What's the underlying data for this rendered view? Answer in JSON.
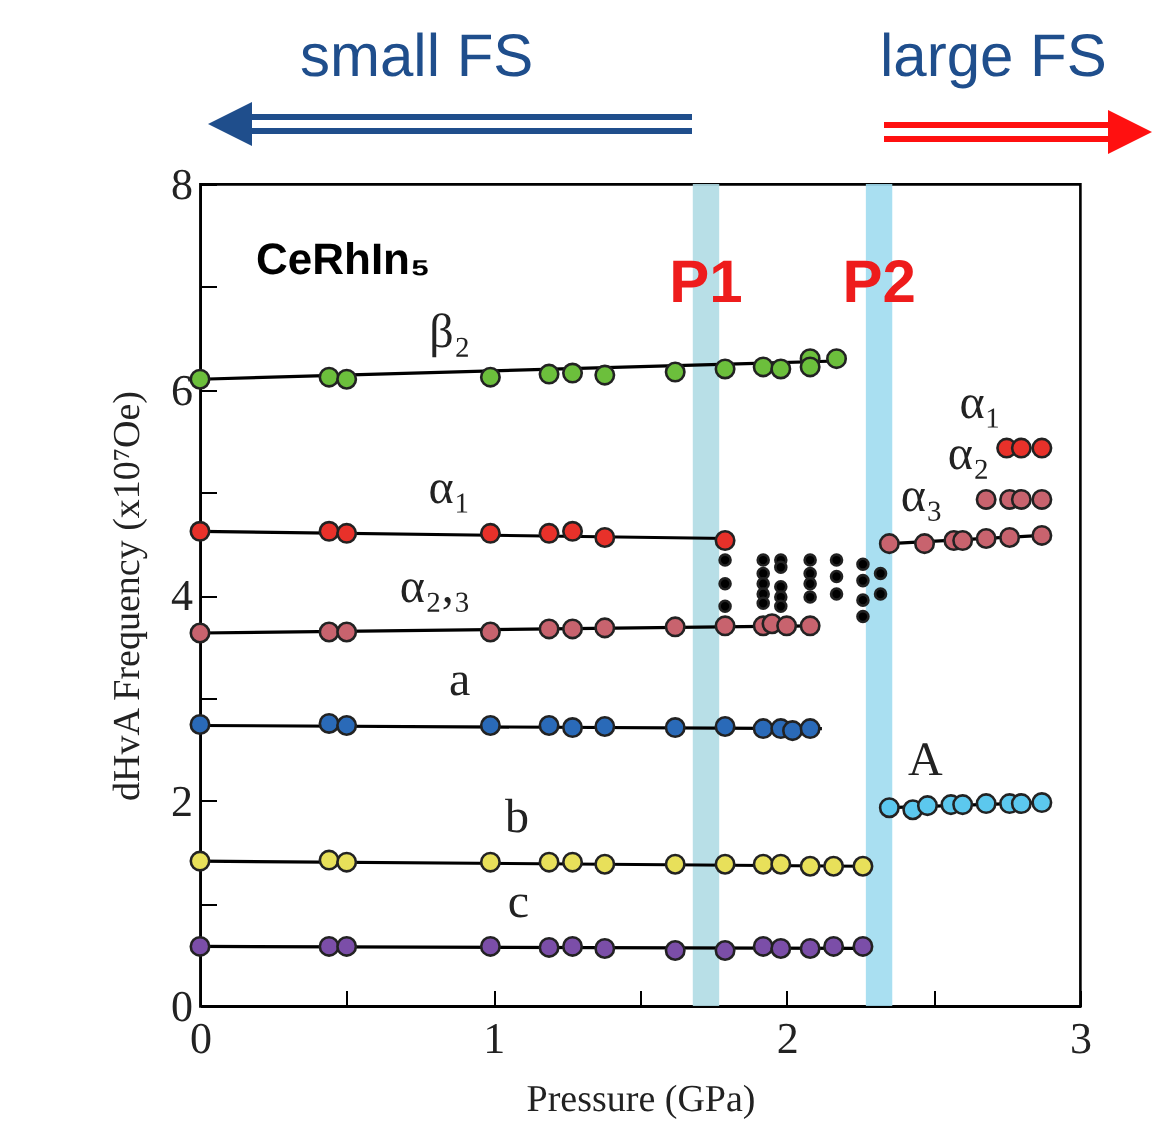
{
  "chart_data": {
    "type": "scatter",
    "title": "CeRhIn₅",
    "xlabel": "Pressure (GPa)",
    "ylabel": "dHvA Frequency (x10⁷Oe)",
    "xlim": [
      0,
      3
    ],
    "ylim": [
      0,
      8
    ],
    "xticks": [
      0,
      {
        "value": 0.5,
        "label": null
      },
      1,
      {
        "value": 1.5,
        "label": null
      },
      2,
      {
        "value": 2.5,
        "label": null
      },
      3
    ],
    "yticks": [
      0,
      {
        "value": 1,
        "label": null
      },
      2,
      {
        "value": 3,
        "label": null
      },
      4,
      {
        "value": 5,
        "label": null
      },
      6,
      {
        "value": 7,
        "label": null
      },
      8
    ],
    "grid": false,
    "marker": "circle",
    "series": [
      {
        "type": "line",
        "marker": "none",
        "color": "#000000",
        "x": [
          0,
          2.2
        ],
        "values": [
          6.1,
          6.28
        ]
      },
      {
        "type": "line",
        "marker": "none",
        "color": "#000000",
        "x": [
          0,
          1.8
        ],
        "values": [
          4.62,
          4.55
        ]
      },
      {
        "type": "line",
        "marker": "none",
        "color": "#000000",
        "x": [
          0,
          2.1
        ],
        "values": [
          3.63,
          3.7
        ]
      },
      {
        "type": "line",
        "marker": "none",
        "color": "#000000",
        "x": [
          0,
          2.12
        ],
        "values": [
          2.73,
          2.7
        ]
      },
      {
        "type": "line",
        "marker": "none",
        "color": "#000000",
        "x": [
          0,
          2.26
        ],
        "values": [
          1.41,
          1.36
        ]
      },
      {
        "type": "line",
        "marker": "none",
        "color": "#000000",
        "x": [
          0,
          2.26
        ],
        "values": [
          0.58,
          0.56
        ]
      },
      {
        "type": "line",
        "marker": "none",
        "color": "#000000",
        "x": [
          2.35,
          2.87
        ],
        "values": [
          4.5,
          4.58
        ]
      },
      {
        "type": "line",
        "marker": "none",
        "color": "#000000",
        "x": [
          2.35,
          2.87
        ],
        "values": [
          1.93,
          1.98
        ]
      },
      {
        "name": "β₂",
        "color": "#6cbf3c",
        "x": [
          0,
          0.44,
          0.5,
          0.99,
          1.19,
          1.27,
          1.38,
          1.62,
          1.79,
          1.92,
          1.98,
          2.08,
          2.08,
          2.17
        ],
        "values": [
          6.1,
          6.12,
          6.1,
          6.12,
          6.15,
          6.16,
          6.14,
          6.17,
          6.2,
          6.22,
          6.2,
          6.3,
          6.22,
          6.3
        ]
      },
      {
        "name": "α₁",
        "color": "#e8312a",
        "x": [
          0,
          0.44,
          0.5,
          0.99,
          1.19,
          1.27,
          1.38,
          1.79
        ],
        "values": [
          4.62,
          4.62,
          4.6,
          4.6,
          4.6,
          4.62,
          4.56,
          4.53
        ]
      },
      {
        "name": "α₂,₃",
        "color": "#c8636e",
        "x": [
          0,
          0.44,
          0.5,
          0.99,
          1.19,
          1.27,
          1.38,
          1.62,
          1.79,
          1.92,
          1.95,
          2.0,
          2.08
        ],
        "values": [
          3.63,
          3.64,
          3.64,
          3.64,
          3.67,
          3.67,
          3.68,
          3.69,
          3.7,
          3.7,
          3.72,
          3.7,
          3.7
        ]
      },
      {
        "name": "a",
        "color": "#2a6ab8",
        "x": [
          0,
          0.44,
          0.5,
          0.99,
          1.19,
          1.27,
          1.38,
          1.62,
          1.79,
          1.92,
          1.98,
          2.02,
          2.08
        ],
        "values": [
          2.74,
          2.75,
          2.73,
          2.73,
          2.73,
          2.71,
          2.72,
          2.71,
          2.72,
          2.7,
          2.7,
          2.68,
          2.7
        ]
      },
      {
        "name": "b",
        "color": "#e8e05a",
        "x": [
          0,
          0.44,
          0.5,
          0.99,
          1.19,
          1.27,
          1.38,
          1.62,
          1.79,
          1.92,
          1.98,
          2.08,
          2.16,
          2.26
        ],
        "values": [
          1.41,
          1.42,
          1.4,
          1.4,
          1.4,
          1.4,
          1.38,
          1.38,
          1.38,
          1.38,
          1.38,
          1.36,
          1.36,
          1.36
        ]
      },
      {
        "name": "c",
        "color": "#7b4ea8",
        "x": [
          0,
          0.44,
          0.5,
          0.99,
          1.19,
          1.27,
          1.38,
          1.62,
          1.79,
          1.92,
          1.98,
          2.08,
          2.16,
          2.26
        ],
        "values": [
          0.58,
          0.58,
          0.58,
          0.58,
          0.57,
          0.58,
          0.56,
          0.54,
          0.54,
          0.58,
          0.56,
          0.56,
          0.58,
          0.58
        ]
      },
      {
        "name": "α₃",
        "color": "#c8636e",
        "x": [
          2.35,
          2.47,
          2.57,
          2.6,
          2.68,
          2.76,
          2.87
        ],
        "values": [
          4.5,
          4.5,
          4.53,
          4.53,
          4.55,
          4.56,
          4.58
        ]
      },
      {
        "name": "α₂",
        "color": "#c8636e",
        "x": [
          2.68,
          2.76,
          2.8,
          2.87
        ],
        "values": [
          4.93,
          4.93,
          4.93,
          4.93
        ]
      },
      {
        "name": "α₁",
        "color": "#e8312a",
        "x": [
          2.75,
          2.8,
          2.87
        ],
        "values": [
          5.43,
          5.43,
          5.43
        ]
      },
      {
        "name": "A",
        "color": "#5cc8ee",
        "x": [
          2.35,
          2.43,
          2.48,
          2.56,
          2.6,
          2.68,
          2.76,
          2.8,
          2.87
        ],
        "values": [
          1.93,
          1.91,
          1.95,
          1.96,
          1.96,
          1.97,
          1.97,
          1.97,
          1.98
        ]
      },
      {
        "color": "#000000",
        "x": [
          1.79,
          1.79,
          1.79,
          1.92,
          1.92,
          1.92,
          1.92,
          1.92,
          1.98,
          1.98,
          1.98,
          1.98,
          1.98,
          2.08,
          2.08,
          2.08,
          2.08,
          2.17,
          2.17,
          2.17,
          2.26,
          2.26,
          2.26,
          2.26,
          2.32,
          2.32
        ],
        "values": [
          4.34,
          4.11,
          3.89,
          4.34,
          4.21,
          4.11,
          4.01,
          3.92,
          4.34,
          4.27,
          4.08,
          3.98,
          3.89,
          4.34,
          4.21,
          4.11,
          3.98,
          4.34,
          4.18,
          4.01,
          4.3,
          4.14,
          3.95,
          3.79,
          4.21,
          4.01
        ]
      }
    ],
    "bands": [
      {
        "axis": "x",
        "from": 1.68,
        "to": 1.77,
        "label": "P1",
        "color": "#b0dce4"
      },
      {
        "axis": "x",
        "from": 2.27,
        "to": 2.36,
        "label": "P2",
        "color": "#a0dcf0"
      }
    ],
    "annotations": [
      "small FS",
      "large FS"
    ]
  }
}
